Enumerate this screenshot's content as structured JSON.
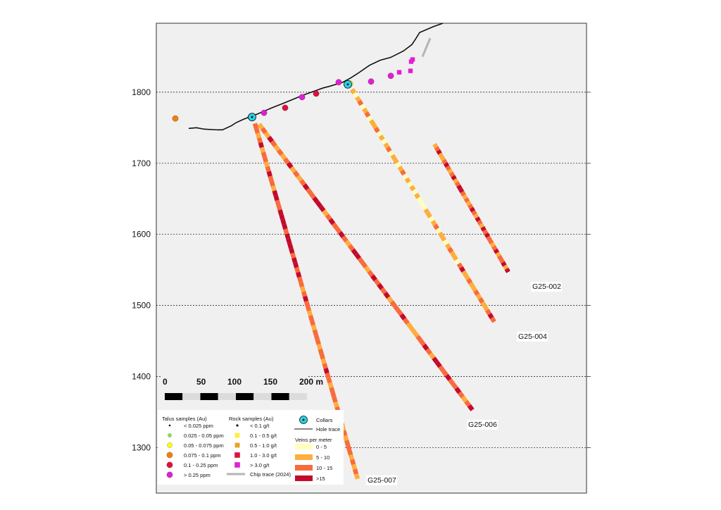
{
  "chart_data": {
    "type": "scatter",
    "title": "",
    "xlabel": "",
    "ylabel": "",
    "ylim": [
      1236,
      1897
    ],
    "xlim_m": [
      -272,
      426
    ],
    "y_ticks": [
      1300,
      1400,
      1500,
      1600,
      1700,
      1800
    ],
    "y_tick_labels": [
      "1300",
      "1400",
      "1500",
      "1600",
      "1700",
      "1800"
    ],
    "gridlines": "dashed horizontal",
    "topography": [
      [
        -227,
        1749
      ],
      [
        -216,
        1750
      ],
      [
        -205,
        1748
      ],
      [
        -186,
        1747
      ],
      [
        -179,
        1747
      ],
      [
        -166,
        1753
      ],
      [
        -160,
        1757
      ],
      [
        -149,
        1762
      ],
      [
        -130,
        1769
      ],
      [
        -109,
        1778
      ],
      [
        -91,
        1785
      ],
      [
        -64,
        1796
      ],
      [
        -36,
        1806
      ],
      [
        -28,
        1808
      ],
      [
        -8,
        1814
      ],
      [
        3,
        1820
      ],
      [
        14,
        1827
      ],
      [
        30,
        1838
      ],
      [
        45,
        1845
      ],
      [
        60,
        1849
      ],
      [
        78,
        1858
      ],
      [
        90,
        1867
      ],
      [
        96,
        1876
      ],
      [
        101,
        1884
      ],
      [
        120,
        1892
      ],
      [
        134,
        1897
      ]
    ],
    "collars": [
      {
        "hole": "G25-002",
        "x": -137,
        "y": 1765
      },
      {
        "hole": "G25-004",
        "x": -1,
        "y": 1811
      }
    ],
    "holes": [
      {
        "label": "G25-002",
        "start": [
          122,
          1727
        ],
        "end": [
          227,
          1547
        ],
        "veins": [
          8,
          12,
          16,
          6,
          9,
          14,
          18,
          11,
          7,
          13,
          17,
          9,
          12,
          15,
          19,
          10,
          8,
          14,
          6,
          11,
          16,
          12,
          9,
          17,
          13,
          8,
          15,
          11,
          18,
          10,
          14,
          7,
          12,
          16,
          9,
          13,
          11,
          15,
          8,
          17
        ]
      },
      {
        "label": "G25-004",
        "start": [
          5,
          1804
        ],
        "end": [
          207,
          1477
        ],
        "veins": [
          7,
          4,
          9,
          12,
          3,
          6,
          10,
          2,
          8,
          5,
          11,
          3,
          7,
          4,
          9,
          13,
          2,
          6,
          8,
          3,
          5,
          10,
          4,
          7,
          2,
          9,
          3,
          6,
          1,
          4,
          2,
          5,
          8,
          3,
          6,
          11,
          4,
          7,
          9,
          3,
          6,
          12,
          5,
          8,
          4,
          10,
          16,
          7,
          9,
          12,
          5,
          8,
          11,
          6,
          14,
          9,
          7,
          12,
          16,
          10
        ]
      },
      {
        "label": "G25-006",
        "start": [
          -127,
          1755
        ],
        "end": [
          176,
          1353
        ],
        "veins": [
          9,
          12,
          7,
          15,
          10,
          6,
          13,
          8,
          11,
          16,
          9,
          14,
          7,
          12,
          18,
          10,
          13,
          17,
          20,
          15,
          9,
          12,
          16,
          11,
          14,
          19,
          13,
          8,
          12,
          17,
          15,
          10,
          14,
          9,
          12,
          16,
          13,
          18,
          11,
          15,
          8,
          12,
          14,
          10,
          16,
          13,
          9,
          5,
          7,
          11,
          14,
          17,
          12,
          9,
          15,
          18,
          13,
          10,
          16,
          12,
          14,
          19,
          11,
          8,
          13,
          16
        ]
      },
      {
        "label": "G25-007",
        "start": [
          -133,
          1756
        ],
        "end": [
          13,
          1256
        ],
        "veins": [
          10,
          13,
          8,
          12,
          15,
          9,
          11,
          14,
          7,
          12,
          16,
          10,
          13,
          9,
          15,
          18,
          12,
          14,
          17,
          20,
          16,
          19,
          13,
          18,
          15,
          21,
          17,
          14,
          19,
          16,
          12,
          15,
          11,
          14,
          9,
          13,
          16,
          10,
          12,
          8,
          11,
          14,
          9,
          12,
          10,
          13,
          7,
          11,
          14,
          9,
          12,
          15,
          10,
          13,
          8,
          11,
          14,
          12,
          9,
          13,
          10,
          15,
          11,
          8,
          12,
          9,
          14,
          10,
          13,
          7,
          11,
          8,
          12,
          9
        ]
      }
    ],
    "talus_samples": [
      {
        "x": -246,
        "y": 1763,
        "class": "0.075 - 0.1 ppm"
      },
      {
        "x": -139,
        "y": 1765,
        "class": "> 0.25 ppm"
      },
      {
        "x": -120,
        "y": 1771,
        "class": "> 0.25 ppm"
      },
      {
        "x": -90,
        "y": 1778,
        "class": "0.1 - 0.25 ppm"
      },
      {
        "x": -66,
        "y": 1793,
        "class": "> 0.25 ppm"
      },
      {
        "x": -46,
        "y": 1798,
        "class": "0.1 - 0.25 ppm"
      },
      {
        "x": -14,
        "y": 1814,
        "class": "> 0.25 ppm"
      },
      {
        "x": 2,
        "y": 1812,
        "class": "0.05 - 0.075 ppm"
      },
      {
        "x": 32,
        "y": 1815,
        "class": "> 0.25 ppm"
      },
      {
        "x": 60,
        "y": 1823,
        "class": "> 0.25 ppm"
      }
    ],
    "rock_samples": [
      {
        "x": 72,
        "y": 1828,
        "class": "> 3.0 g/t"
      },
      {
        "x": 88,
        "y": 1830,
        "class": "> 3.0 g/t"
      },
      {
        "x": 89,
        "y": 1843,
        "class": "> 3.0 g/t"
      },
      {
        "x": 91,
        "y": 1846,
        "class": "> 3.0 g/t"
      }
    ],
    "chip_traces": [
      {
        "start": [
          116,
          1876
        ],
        "end": [
          105,
          1850
        ]
      }
    ],
    "colors": {
      "plot_bg": "#f0f0f0",
      "collar_fill": "#27d4e4",
      "vein_0_5": "#ffffbf",
      "vein_5_10": "#fdae3d",
      "vein_10_15": "#f96a3c",
      "vein_gt15": "#c40a2c",
      "talus_lt_0025": "#000000",
      "talus_0025_005": "#8ee63a",
      "talus_005_0075": "#ffff00",
      "talus_0075_01": "#f07f10",
      "talus_01_025": "#e0103c",
      "talus_gt025": "#e21ed2",
      "rock_lt_01": "#000000",
      "rock_01_05": "#ffee44",
      "rock_05_10": "#e9a224",
      "rock_10_30": "#e0103c",
      "rock_gt30": "#e21ed2",
      "chip": "#b4b4b4"
    }
  },
  "scale_bar": {
    "labels": [
      "0",
      "50",
      "100",
      "150",
      "200 m"
    ]
  },
  "legend": {
    "talus": {
      "title": "Talus samples (Au)",
      "items": [
        {
          "label": "< 0.025 ppm",
          "color": "#000000",
          "size": "tiny"
        },
        {
          "label": "0.025 - 0.05 ppm",
          "color": "#8ee63a",
          "size": "small"
        },
        {
          "label": "0.05 - 0.075 ppm",
          "color": "#ffff00",
          "size": "medium"
        },
        {
          "label": "0.075 - 0.1 ppm",
          "color": "#f07f10",
          "size": "large"
        },
        {
          "label": "0.1 - 0.25 ppm",
          "color": "#e0103c",
          "size": "large"
        },
        {
          "label": "> 0.25 ppm",
          "color": "#e21ed2",
          "size": "large"
        }
      ]
    },
    "rock": {
      "title": "Rock samples (Au)",
      "items": [
        {
          "label": "< 0.1 g/t",
          "color": "#000000",
          "size": "tiny"
        },
        {
          "label": "0.1 - 0.5 g/t",
          "color": "#ffee44",
          "size": "small"
        },
        {
          "label": "0.5 - 1.0 g/t",
          "color": "#e9a224",
          "size": "small"
        },
        {
          "label": "1.0 - 3.0 g/t",
          "color": "#e0103c",
          "size": "medium"
        },
        {
          "label": "> 3.0 g/t",
          "color": "#e21ed2",
          "size": "medium"
        }
      ],
      "chip_label": "Chip trace (2024)"
    },
    "collars_label": "Collars",
    "hole_trace_label": "Hole trace",
    "veins": {
      "title": "Veins per meter",
      "items": [
        {
          "label": "0 - 5",
          "color": "#ffffbf"
        },
        {
          "label": "5 - 10",
          "color": "#fdae3d"
        },
        {
          "label": "10 - 15",
          "color": "#f96a3c"
        },
        {
          "label": ">15",
          "color": "#c40a2c"
        }
      ]
    }
  }
}
